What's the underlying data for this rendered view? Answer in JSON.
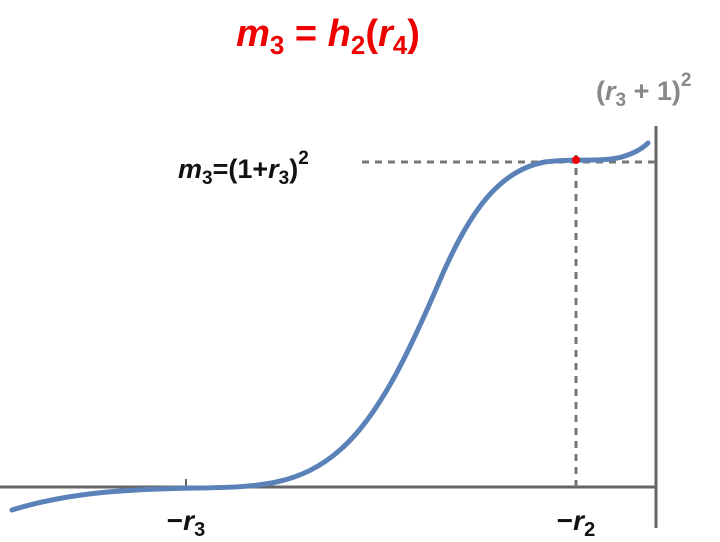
{
  "title": [
    "m",
    "3",
    " = ",
    "h",
    "2",
    "(",
    "r",
    "4",
    ")"
  ],
  "y_label": [
    "m",
    "3",
    "=(1+",
    "r",
    "3",
    ")",
    "2"
  ],
  "corner_label": [
    "(",
    "r",
    "3",
    " + 1)",
    "2"
  ],
  "x_labels": [
    [
      "−",
      "r",
      "3"
    ],
    [
      "−",
      "r",
      "2"
    ]
  ]
}
